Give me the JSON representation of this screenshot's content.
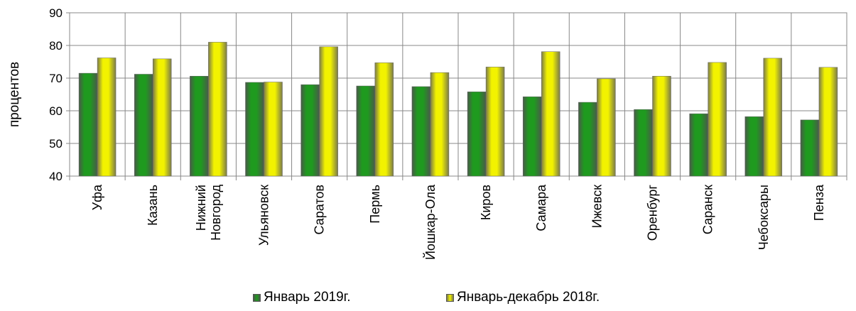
{
  "chart_data": {
    "type": "bar",
    "title": "",
    "xlabel": "",
    "ylabel": "процентов",
    "ylim": [
      40,
      90
    ],
    "yticks": [
      40,
      50,
      60,
      70,
      80,
      90
    ],
    "grid": true,
    "legend_position": "bottom",
    "categories": [
      "Уфа",
      "Казань",
      "Нижний Новгород",
      "Ульяновск",
      "Саратов",
      "Пермь",
      "Йошкар-Ола",
      "Киров",
      "Самара",
      "Ижевск",
      "Оренбург",
      "Саранск",
      "Чебоксары",
      "Пенза"
    ],
    "category_lines": [
      [
        "Уфа"
      ],
      [
        "Казань"
      ],
      [
        "Нижний",
        "Новгород"
      ],
      [
        "Ульяновск"
      ],
      [
        "Саратов"
      ],
      [
        "Пермь"
      ],
      [
        "Йошкар-Ола"
      ],
      [
        "Киров"
      ],
      [
        "Самара"
      ],
      [
        "Ижевск"
      ],
      [
        "Оренбург"
      ],
      [
        "Саранск"
      ],
      [
        "Чебоксары"
      ],
      [
        "Пенза"
      ]
    ],
    "series": [
      {
        "name": "Январь 2019г.",
        "color": "#1f9a1f",
        "values": [
          71.5,
          71.2,
          70.6,
          68.7,
          68.0,
          67.6,
          67.4,
          65.8,
          64.3,
          62.6,
          60.4,
          59.1,
          58.2,
          57.2
        ]
      },
      {
        "name": "Январь-декабрь 2018г.",
        "color": "#f2f200",
        "values": [
          76.2,
          75.9,
          81.0,
          68.8,
          79.6,
          74.7,
          71.7,
          73.4,
          78.1,
          69.8,
          70.6,
          74.8,
          76.1,
          73.3
        ]
      }
    ]
  }
}
